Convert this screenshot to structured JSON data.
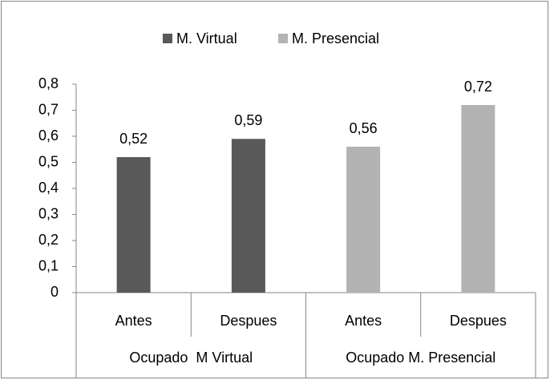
{
  "chart_data": {
    "type": "bar",
    "groups": [
      {
        "name": "Ocupado  M Virtual",
        "categories": [
          "Antes",
          "Despues"
        ]
      },
      {
        "name": "Ocupado M. Presencial",
        "categories": [
          "Antes",
          "Despues"
        ]
      }
    ],
    "series": [
      {
        "name": "M. Virtual",
        "color": "#595959",
        "values": [
          0.52,
          0.59,
          null,
          null
        ],
        "value_labels": [
          "0,52",
          "0,59",
          null,
          null
        ]
      },
      {
        "name": "M. Presencial",
        "color": "#b3b3b3",
        "values": [
          null,
          null,
          0.56,
          0.72
        ],
        "value_labels": [
          null,
          null,
          "0,56",
          "0,72"
        ]
      }
    ],
    "ylim": [
      0,
      0.8
    ],
    "yticks": [
      0,
      {
        "value": 0.1,
        "label": "0,1"
      },
      {
        "value": 0.2,
        "label": "0,2"
      },
      {
        "value": 0.3,
        "label": "0,3"
      },
      {
        "value": 0.4,
        "label": "0,4"
      },
      {
        "value": 0.5,
        "label": "0,5"
      },
      {
        "value": 0.6,
        "label": "0,6"
      },
      {
        "value": 0.7,
        "label": "0,7"
      },
      {
        "value": 0.8,
        "label": "0,8"
      }
    ],
    "legend": "top"
  }
}
